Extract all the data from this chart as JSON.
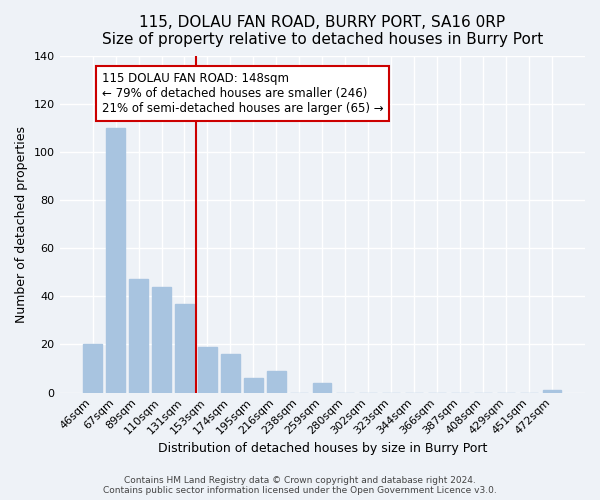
{
  "title": "115, DOLAU FAN ROAD, BURRY PORT, SA16 0RP",
  "subtitle": "Size of property relative to detached houses in Burry Port",
  "xlabel": "Distribution of detached houses by size in Burry Port",
  "ylabel": "Number of detached properties",
  "bar_labels": [
    "46sqm",
    "67sqm",
    "89sqm",
    "110sqm",
    "131sqm",
    "153sqm",
    "174sqm",
    "195sqm",
    "216sqm",
    "238sqm",
    "259sqm",
    "280sqm",
    "302sqm",
    "323sqm",
    "344sqm",
    "366sqm",
    "387sqm",
    "408sqm",
    "429sqm",
    "451sqm",
    "472sqm"
  ],
  "bar_values": [
    20,
    110,
    47,
    44,
    37,
    19,
    16,
    6,
    9,
    0,
    4,
    0,
    0,
    0,
    0,
    0,
    0,
    0,
    0,
    0,
    1
  ],
  "bar_color": "#a8c4e0",
  "vline_x_index": 5,
  "vline_color": "#cc0000",
  "annotation_line1": "115 DOLAU FAN ROAD: 148sqm",
  "annotation_line2": "← 79% of detached houses are smaller (246)",
  "annotation_line3": "21% of semi-detached houses are larger (65) →",
  "ylim": [
    0,
    140
  ],
  "yticks": [
    0,
    20,
    40,
    60,
    80,
    100,
    120,
    140
  ],
  "title_fontsize": 11,
  "axis_label_fontsize": 9,
  "tick_fontsize": 8,
  "annotation_fontsize": 8.5,
  "footer_fontsize": 6.5,
  "background_color": "#eef2f7",
  "footer_line1": "Contains HM Land Registry data © Crown copyright and database right 2024.",
  "footer_line2": "Contains public sector information licensed under the Open Government Licence v3.0."
}
